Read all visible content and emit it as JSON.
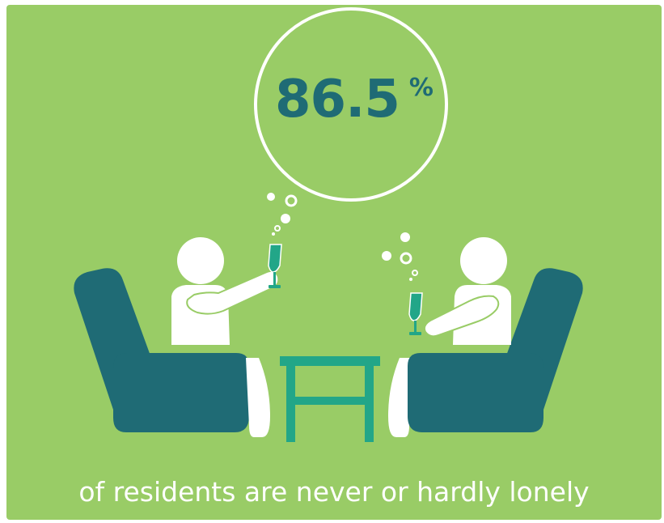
{
  "stat": {
    "value": "86.5",
    "unit": "%"
  },
  "caption": "of residents are never or hardly lonely",
  "colors": {
    "background": "#99cc66",
    "armchair": "#1f6b75",
    "table": "#22a688",
    "glass": "#22a688",
    "figure": "#ffffff",
    "stat_text": "#1f6b75",
    "caption_text": "#ffffff"
  },
  "icons": [
    "thought-bubble-icon",
    "person-icon",
    "armchair-icon",
    "side-table-icon",
    "wine-glass-icon",
    "bubbles-icon"
  ]
}
